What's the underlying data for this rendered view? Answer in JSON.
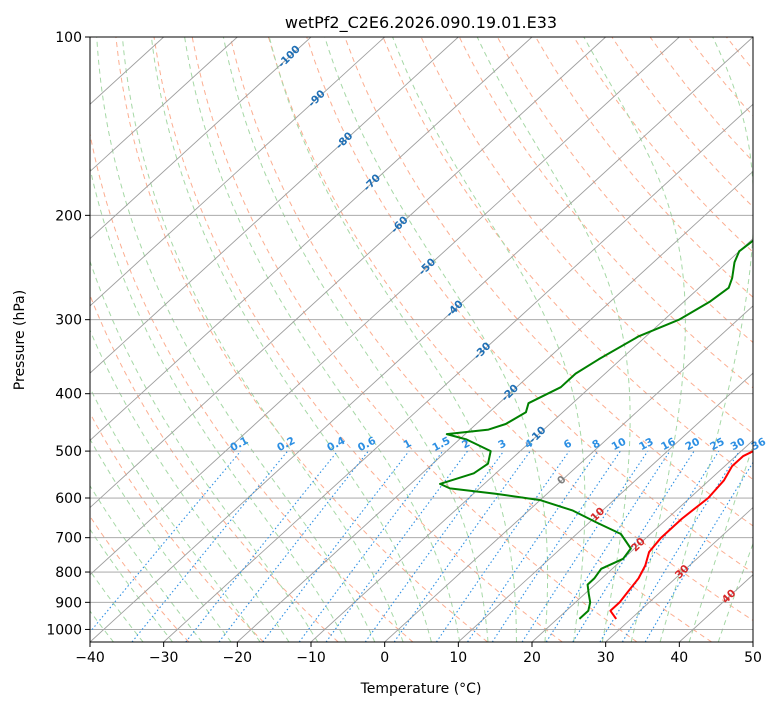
{
  "chart_data": {
    "type": "line",
    "title": "wetPf2_C2E6.2026.090.19.01.E33",
    "xlabel": "Temperature (°C)",
    "ylabel": "Pressure (hPa)",
    "xlim": [
      -40,
      50
    ],
    "ylim": [
      1050,
      100
    ],
    "x_ticks": [
      "−40",
      "−30",
      "−20",
      "−10",
      "0",
      "10",
      "20",
      "30",
      "40",
      "50"
    ],
    "y_ticks": [
      "100",
      "200",
      "300",
      "400",
      "500",
      "600",
      "700",
      "800",
      "900",
      "1000"
    ],
    "series": [
      {
        "name": "Temperature",
        "color": "#ff0000",
        "points": [
          [
            28,
            960
          ],
          [
            26,
            930
          ],
          [
            26,
            900
          ],
          [
            25.5,
            860
          ],
          [
            25,
            820
          ],
          [
            24,
            780
          ],
          [
            22.5,
            740
          ],
          [
            22,
            700
          ],
          [
            22,
            650
          ],
          [
            22.5,
            600
          ],
          [
            22,
            560
          ],
          [
            21,
            530
          ],
          [
            21,
            510
          ],
          [
            23,
            480
          ],
          [
            22.5,
            460
          ],
          [
            21,
            440
          ],
          [
            18,
            400
          ],
          [
            15,
            360
          ],
          [
            11.5,
            320
          ],
          [
            9,
            300
          ],
          [
            6,
            270
          ],
          [
            3.5,
            240
          ],
          [
            1,
            215
          ],
          [
            -1,
            190
          ],
          [
            -3,
            170
          ],
          [
            -4,
            155
          ],
          [
            -5,
            140
          ],
          [
            -6,
            130
          ],
          [
            -6.5,
            123
          ],
          [
            -7,
            115
          ],
          [
            -8,
            108
          ],
          [
            -8.5,
            100
          ]
        ]
      },
      {
        "name": "Dewpoint",
        "color": "#008000",
        "points": [
          [
            23,
            960
          ],
          [
            23,
            930
          ],
          [
            22,
            900
          ],
          [
            20.5,
            870
          ],
          [
            19,
            840
          ],
          [
            19,
            820
          ],
          [
            18.5,
            790
          ],
          [
            20,
            760
          ],
          [
            19.5,
            730
          ],
          [
            16,
            690
          ],
          [
            11,
            660
          ],
          [
            6,
            630
          ],
          [
            0,
            605
          ],
          [
            -7,
            590
          ],
          [
            -14,
            578
          ],
          [
            -16,
            568
          ],
          [
            -13,
            545
          ],
          [
            -12.5,
            525
          ],
          [
            -14,
            500
          ],
          [
            -19,
            478
          ],
          [
            -22.5,
            468
          ],
          [
            -17.5,
            460
          ],
          [
            -16,
            450
          ],
          [
            -15,
            430
          ],
          [
            -16,
            415
          ],
          [
            -14,
            390
          ],
          [
            -14,
            370
          ],
          [
            -13,
            350
          ],
          [
            -11,
            320
          ],
          [
            -8,
            300
          ],
          [
            -6.5,
            280
          ],
          [
            -6,
            265
          ],
          [
            -7,
            255
          ],
          [
            -9,
            240
          ],
          [
            -10,
            230
          ],
          [
            -9.5,
            215
          ],
          [
            -8,
            195
          ],
          [
            -7,
            180
          ],
          [
            -7.5,
            165
          ],
          [
            -7,
            150
          ],
          [
            -6.5,
            135
          ],
          [
            -5.5,
            120
          ],
          [
            -4.5,
            108
          ],
          [
            -4,
            100
          ]
        ]
      }
    ],
    "mixing_ratio_labels": [
      "0.1",
      "0.2",
      "0.4",
      "0.6",
      "1",
      "1.5",
      "2",
      "3",
      "4",
      "6",
      "8",
      "10",
      "13",
      "16",
      "20",
      "25",
      "30",
      "36"
    ],
    "mixing_ratio_values": [
      0.1,
      0.2,
      0.4,
      0.6,
      1,
      1.5,
      2,
      3,
      4,
      6,
      8,
      10,
      13,
      16,
      20,
      25,
      30,
      36
    ],
    "moist_adiabat_labels": [
      "-100",
      "-90",
      "-80",
      "-70",
      "-60",
      "-50",
      "-40",
      "-30",
      "-20",
      "-10",
      "0",
      "10",
      "20",
      "30",
      "40"
    ],
    "moist_adiabat_values": [
      -100,
      -90,
      -80,
      -70,
      -60,
      -50,
      -40,
      -30,
      -20,
      -10,
      0,
      10,
      20,
      30,
      40
    ],
    "colors": {
      "temperature": "#ff0000",
      "dewpoint": "#008000",
      "isotherm": "#9e9e9e",
      "isobar": "#9e9e9e",
      "dry_adiabat": "#fcae91",
      "moist_adiabat": "#a6d8a6",
      "mixing_ratio": "#2c8fe3",
      "label_cold": "#1f6fb5",
      "label_zero": "#808080",
      "label_warm": "#d62728",
      "mixing_label": "#2c8fe3"
    },
    "grid": true
  }
}
